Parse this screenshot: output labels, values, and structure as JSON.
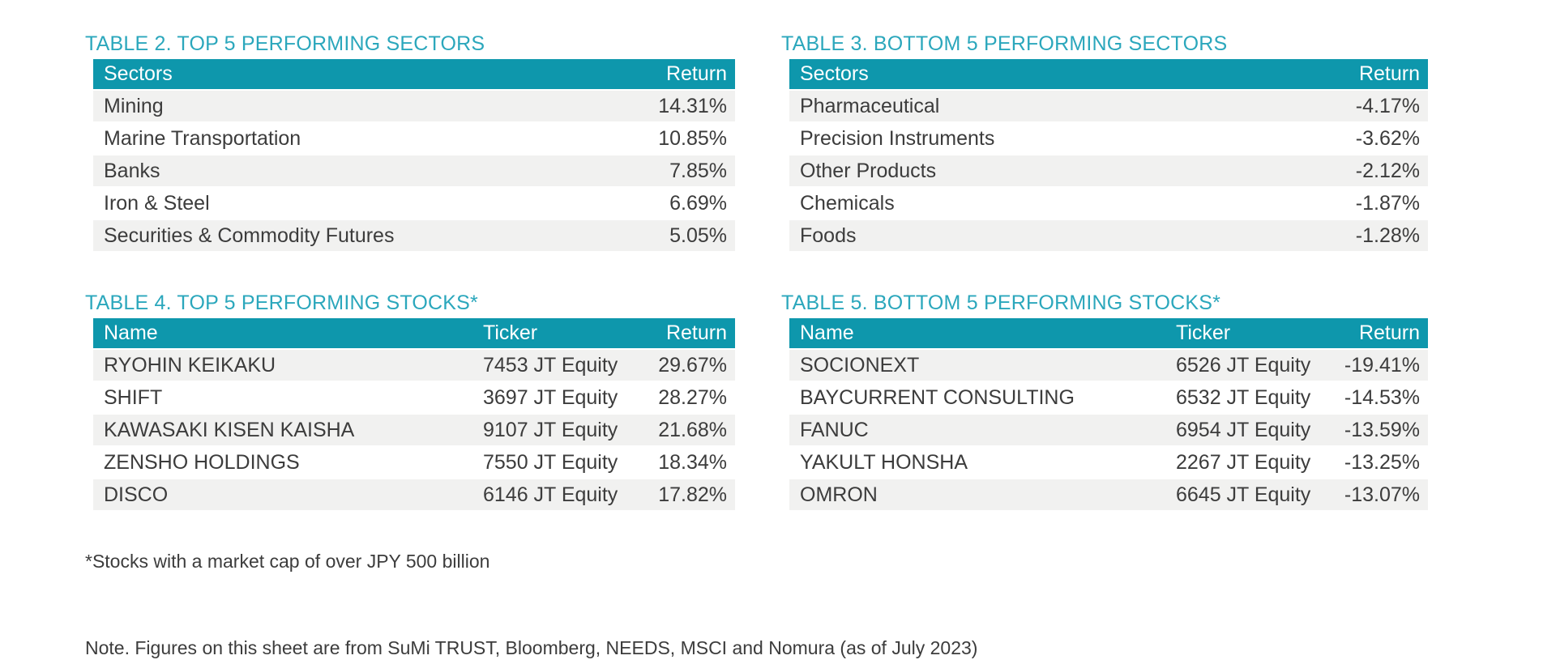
{
  "colors": {
    "header_bg": "#0E97AC",
    "title_teal": "#2BA7BC",
    "row_alt_gray": "#F1F1F0",
    "body_text": "#3C3C3C",
    "header_text": "#FFFFFF"
  },
  "tables": {
    "table2": {
      "title": "TABLE 2. TOP 5 PERFORMING SECTORS",
      "columns": [
        "Sectors",
        "Return"
      ],
      "rows": [
        [
          "Mining",
          "14.31%"
        ],
        [
          "Marine Transportation",
          "10.85%"
        ],
        [
          "Banks",
          "7.85%"
        ],
        [
          "Iron & Steel",
          "6.69%"
        ],
        [
          "Securities & Commodity Futures",
          "5.05%"
        ]
      ]
    },
    "table3": {
      "title": "TABLE 3. BOTTOM 5 PERFORMING SECTORS",
      "columns": [
        "Sectors",
        "Return"
      ],
      "rows": [
        [
          "Pharmaceutical",
          "-4.17%"
        ],
        [
          "Precision Instruments",
          "-3.62%"
        ],
        [
          "Other Products",
          "-2.12%"
        ],
        [
          "Chemicals",
          "-1.87%"
        ],
        [
          "Foods",
          "-1.28%"
        ]
      ]
    },
    "table4": {
      "title": "TABLE 4. TOP 5 PERFORMING STOCKS*",
      "columns": [
        "Name",
        "Ticker",
        "Return"
      ],
      "rows": [
        [
          "RYOHIN KEIKAKU",
          "7453 JT Equity",
          "29.67%"
        ],
        [
          "SHIFT",
          "3697 JT Equity",
          "28.27%"
        ],
        [
          "KAWASAKI KISEN KAISHA",
          "9107 JT Equity",
          "21.68%"
        ],
        [
          "ZENSHO HOLDINGS",
          "7550 JT Equity",
          "18.34%"
        ],
        [
          "DISCO",
          "6146 JT Equity",
          "17.82%"
        ]
      ]
    },
    "table5": {
      "title": "TABLE 5. BOTTOM 5 PERFORMING STOCKS*",
      "columns": [
        "Name",
        "Ticker",
        "Return"
      ],
      "rows": [
        [
          "SOCIONEXT",
          "6526 JT Equity",
          "-19.41%"
        ],
        [
          "BAYCURRENT CONSULTING",
          "6532 JT Equity",
          "-14.53%"
        ],
        [
          "FANUC",
          "6954 JT Equity",
          "-13.59%"
        ],
        [
          "YAKULT HONSHA",
          "2267 JT Equity",
          "-13.25%"
        ],
        [
          "OMRON",
          "6645 JT Equity",
          "-13.07%"
        ]
      ]
    }
  },
  "footnotes": {
    "stocks_note": "*Stocks with a market cap of over JPY 500 billion",
    "source_note": "Note. Figures on this sheet are from SuMi TRUST, Bloomberg, NEEDS, MSCI and Nomura (as of July 2023)"
  }
}
